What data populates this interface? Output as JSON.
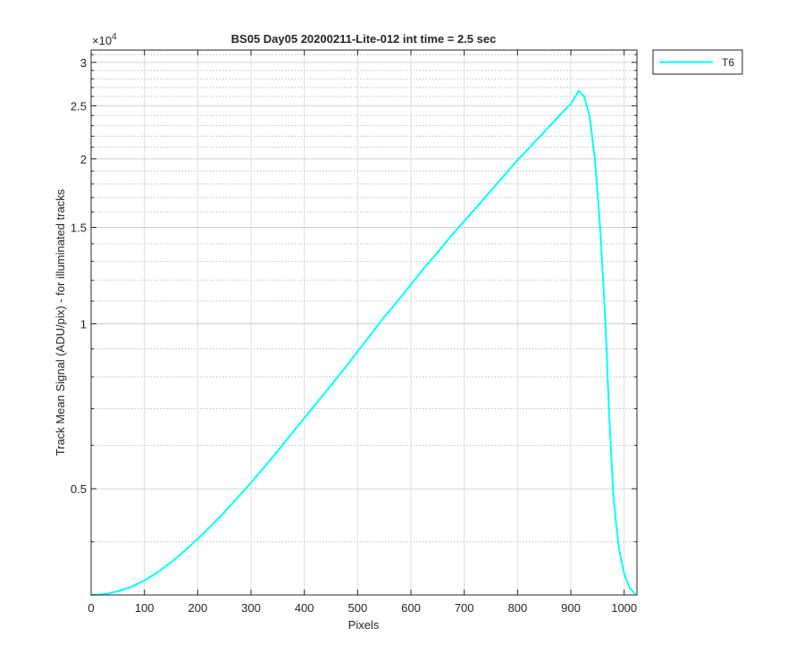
{
  "chart_data": {
    "type": "line",
    "title": "BS05 Day05 20200211-Lite-012 int time = 2.5 sec",
    "xlabel": "Pixels",
    "ylabel": "Track Mean Signal (ADU/pix) - for illuminated tracks",
    "y_scale": "log",
    "y_exponent_label": "×10",
    "y_exponent_power": "4",
    "xlim": [
      0,
      1024
    ],
    "ylim": [
      3200,
      31600
    ],
    "x_ticks": [
      0,
      100,
      200,
      300,
      400,
      500,
      600,
      700,
      800,
      900,
      1000
    ],
    "x_tick_labels": [
      "0",
      "100",
      "200",
      "300",
      "400",
      "500",
      "600",
      "700",
      "800",
      "900",
      "1000"
    ],
    "y_ticks": [
      5000,
      10000,
      15000,
      20000,
      25000,
      30000
    ],
    "y_tick_labels": [
      "0.5",
      "1",
      "1.5",
      "2",
      "2.5",
      "3"
    ],
    "y_minor_ticks": [
      4000,
      6000,
      7000,
      8000,
      9000,
      11000,
      12000,
      13000,
      14000,
      16000,
      17000,
      18000,
      19000,
      21000,
      22000,
      23000,
      24000,
      26000,
      27000,
      28000,
      29000,
      31000
    ],
    "grid": true,
    "minor_grid": true,
    "legend_position": "outside-top-right",
    "series": [
      {
        "name": "T6",
        "color": "#00ffff",
        "x": [
          0,
          25,
          50,
          75,
          100,
          125,
          150,
          175,
          200,
          225,
          250,
          275,
          300,
          325,
          350,
          375,
          400,
          425,
          450,
          475,
          500,
          525,
          550,
          575,
          600,
          625,
          650,
          675,
          700,
          725,
          750,
          775,
          800,
          825,
          850,
          875,
          900,
          915,
          925,
          935,
          945,
          955,
          965,
          972,
          980,
          990,
          1000,
          1010,
          1020
        ],
        "y": [
          3200,
          3210,
          3250,
          3310,
          3400,
          3520,
          3670,
          3850,
          4050,
          4280,
          4530,
          4820,
          5130,
          5480,
          5860,
          6280,
          6730,
          7210,
          7720,
          8280,
          8900,
          9570,
          10300,
          11000,
          11800,
          12650,
          13500,
          14450,
          15400,
          16400,
          17500,
          18650,
          19900,
          21100,
          22400,
          23800,
          25200,
          26600,
          26000,
          24000,
          20000,
          15000,
          10000,
          6800,
          4800,
          3900,
          3500,
          3300,
          3220
        ]
      }
    ]
  }
}
